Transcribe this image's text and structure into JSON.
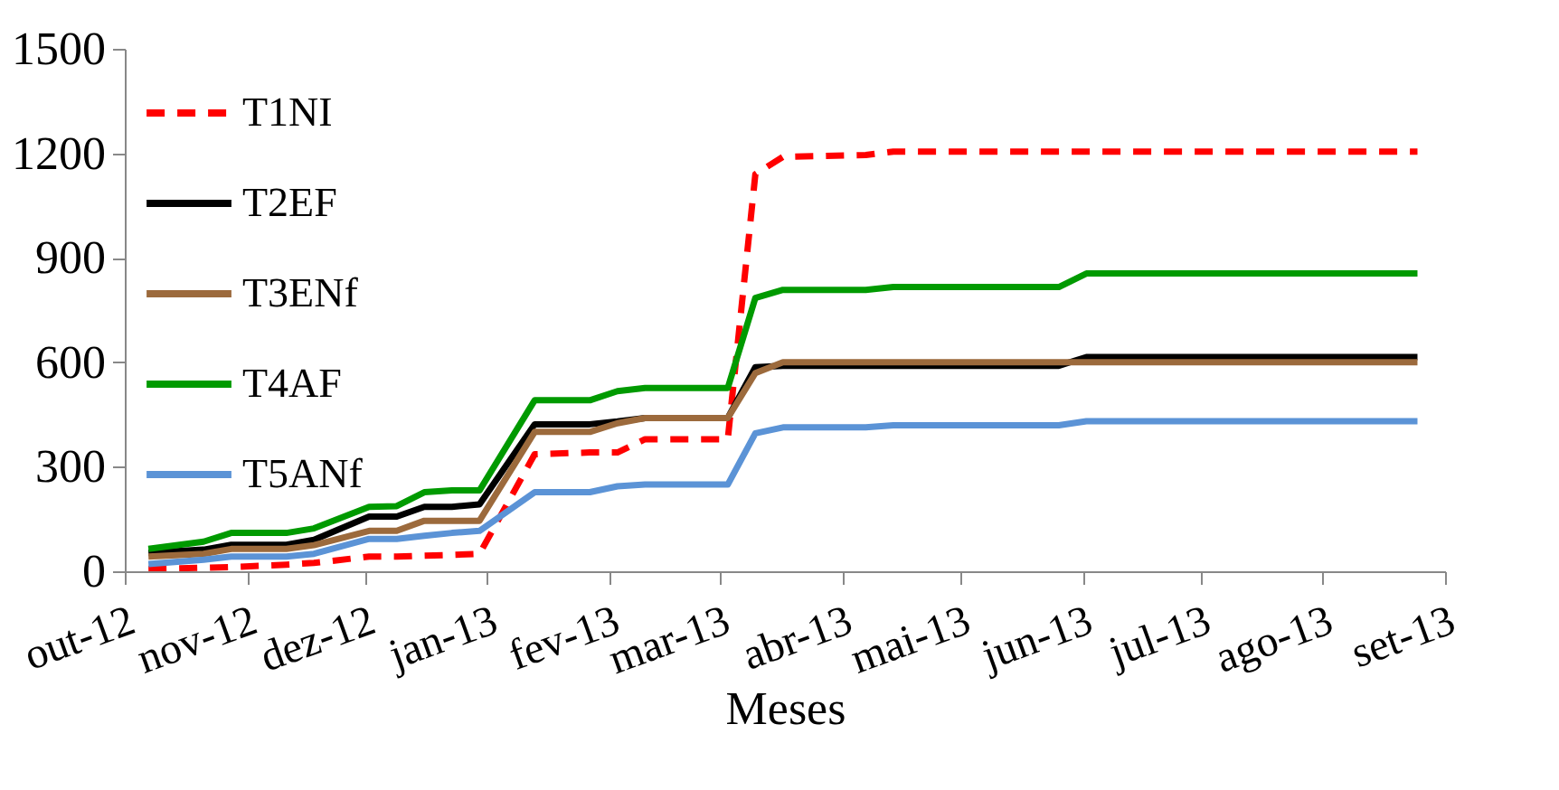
{
  "chart_data": {
    "type": "line",
    "xlabel": "Meses",
    "x": [
      "2012-10-07",
      "2012-10-21",
      "2012-10-28",
      "2012-11-11",
      "2012-11-18",
      "2012-12-02",
      "2012-12-09",
      "2012-12-16",
      "2012-12-23",
      "2012-12-30",
      "2013-01-13",
      "2013-01-27",
      "2013-02-03",
      "2013-02-10",
      "2013-03-03",
      "2013-03-10",
      "2013-03-17",
      "2013-04-07",
      "2013-04-14",
      "2013-05-26",
      "2013-06-02",
      "2013-08-25"
    ],
    "series": [
      {
        "name": "T1NI",
        "color": "#ff0000",
        "line_style": "dashed",
        "values": [
          7,
          10,
          12,
          19,
          24,
          42,
          42,
          45,
          47,
          50,
          336,
          341,
          341,
          379,
          379,
          1140,
          1190,
          1195,
          1205,
          1205,
          1205,
          1205
        ]
      },
      {
        "name": "T2EF",
        "color": "#000000",
        "values": [
          53,
          62,
          76,
          76,
          90,
          157,
          157,
          185,
          185,
          192,
          422,
          422,
          430,
          440,
          440,
          586,
          590,
          590,
          590,
          590,
          615,
          615
        ]
      },
      {
        "name": "T3ENf",
        "color": "#9c6a3c",
        "values": [
          42,
          50,
          64,
          64,
          75,
          116,
          116,
          145,
          145,
          145,
          400,
          400,
          425,
          440,
          440,
          569,
          600,
          600,
          600,
          600,
          600,
          600
        ]
      },
      {
        "name": "T4AF",
        "color": "#009a00",
        "values": [
          64,
          85,
          110,
          110,
          123,
          185,
          187,
          227,
          232,
          232,
          491,
          491,
          517,
          526,
          526,
          785,
          808,
          808,
          816,
          816,
          855,
          855
        ]
      },
      {
        "name": "T5ANf",
        "color": "#5b93d6",
        "values": [
          21,
          33,
          42,
          42,
          50,
          93,
          93,
          102,
          110,
          116,
          227,
          227,
          244,
          249,
          249,
          396,
          413,
          413,
          419,
          419,
          431,
          431
        ]
      }
    ],
    "xlim": [
      "2012-10-01",
      "2013-09-01"
    ],
    "xticks": [
      {
        "value": "2012-10-01",
        "label": "out-12"
      },
      {
        "value": "2012-11-01",
        "label": "nov-12"
      },
      {
        "value": "2012-12-01",
        "label": "dez-12"
      },
      {
        "value": "2013-01-01",
        "label": "jan-13"
      },
      {
        "value": "2013-02-01",
        "label": "fev-13"
      },
      {
        "value": "2013-03-01",
        "label": "mar-13"
      },
      {
        "value": "2013-04-01",
        "label": "abr-13"
      },
      {
        "value": "2013-05-01",
        "label": "mai-13"
      },
      {
        "value": "2013-06-01",
        "label": "jun-13"
      },
      {
        "value": "2013-07-01",
        "label": "jul-13"
      },
      {
        "value": "2013-08-01",
        "label": "ago-13"
      },
      {
        "value": "2013-09-01",
        "label": "set-13"
      }
    ],
    "ylim": [
      0,
      1500
    ],
    "yticks": [
      0,
      300,
      600,
      900,
      1200,
      1500
    ],
    "grid": false,
    "legend": "top left",
    "marker": "none"
  }
}
